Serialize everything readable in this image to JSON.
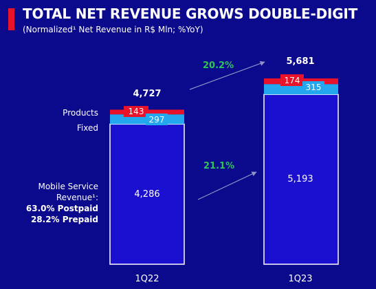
{
  "header": {
    "title": "TOTAL NET REVENUE GROWS DOUBLE-DIGIT",
    "subtitle": "(Normalized¹ Net Revenue in R$ Mln; %YoY)"
  },
  "colors": {
    "background": "#0c0a8c",
    "mobile": "#1b0fd0",
    "fixed": "#23a7ee",
    "products": "#e8122b",
    "growth": "#2fc35a",
    "arrow": "#8f93c8"
  },
  "chart_data": {
    "type": "bar",
    "stacked": true,
    "categories": [
      "1Q22",
      "1Q23"
    ],
    "series": [
      {
        "name": "Mobile Service Revenue¹:",
        "values": [
          4286,
          5193
        ]
      },
      {
        "name": "Fixed",
        "values": [
          297,
          315
        ]
      },
      {
        "name": "Products",
        "values": [
          143,
          174
        ]
      }
    ],
    "totals": [
      "4,727",
      "5,681"
    ],
    "value_labels": {
      "mobile": [
        "4,286",
        "5,193"
      ],
      "fixed": [
        "297",
        "315"
      ],
      "products": [
        "143",
        "174"
      ]
    },
    "growth_labels": {
      "total": "20.2%",
      "mobile": "21.1%"
    },
    "legend_notes": [
      "63.0% Postpaid",
      "28.2% Prepaid"
    ],
    "legend_placement": "left",
    "grid": false,
    "ylim": [
      0,
      5681
    ]
  }
}
